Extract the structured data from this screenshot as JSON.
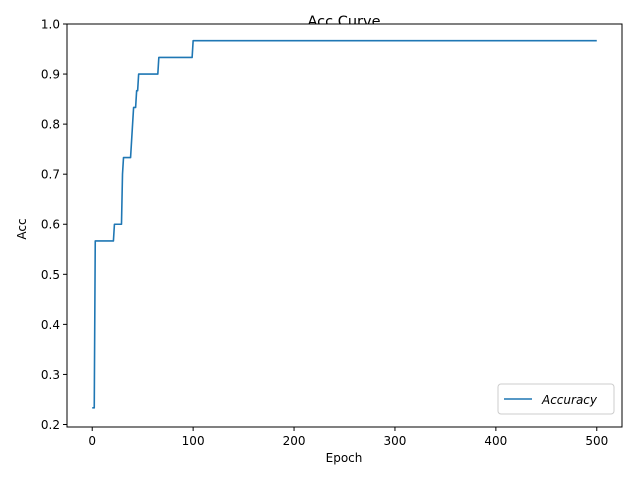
{
  "chart_data": {
    "type": "line",
    "title": "Acc Curve",
    "xlabel": "Epoch",
    "ylabel": "Acc",
    "xlim": [
      -25,
      525
    ],
    "ylim": [
      0.195,
      1.0
    ],
    "xticks": [
      0,
      100,
      200,
      300,
      400,
      500
    ],
    "yticks": [
      0.2,
      0.3,
      0.4,
      0.5,
      0.6,
      0.7,
      0.8,
      0.9,
      1.0
    ],
    "ytick_labels": [
      "0.2",
      "0.3",
      "0.4",
      "0.5",
      "0.6",
      "0.7",
      "0.8",
      "0.9",
      "1.0"
    ],
    "grid": false,
    "legend_position": "lower-right",
    "series": [
      {
        "name": "Accuracy",
        "color": "#1f77b4",
        "x": [
          0,
          2,
          3,
          21,
          22,
          29,
          30,
          31,
          32,
          38,
          39,
          40,
          41,
          42,
          43,
          44,
          45,
          46,
          47,
          65,
          66,
          99,
          100,
          500
        ],
        "y": [
          0.2333,
          0.2333,
          0.5667,
          0.5667,
          0.6,
          0.6,
          0.7,
          0.7333,
          0.7333,
          0.7333,
          0.7667,
          0.8,
          0.8333,
          0.8333,
          0.8333,
          0.8667,
          0.8667,
          0.9,
          0.9,
          0.9,
          0.9333,
          0.9333,
          0.9667,
          0.9667
        ]
      }
    ]
  }
}
